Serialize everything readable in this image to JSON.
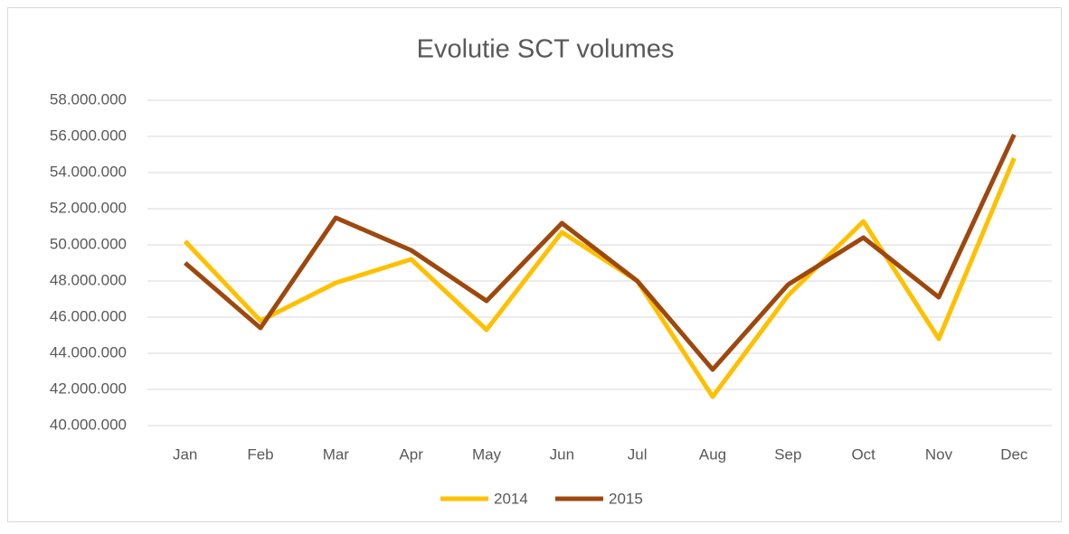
{
  "chart_data": {
    "type": "line",
    "title": "Evolutie SCT volumes",
    "categories": [
      "Jan",
      "Feb",
      "Mar",
      "Apr",
      "May",
      "Jun",
      "Jul",
      "Aug",
      "Sep",
      "Oct",
      "Nov",
      "Dec"
    ],
    "series": [
      {
        "name": "2014",
        "color": "#ffc000",
        "values": [
          50200000,
          45800000,
          47900000,
          49200000,
          45300000,
          50700000,
          48000000,
          41600000,
          47200000,
          51300000,
          44800000,
          54800000
        ]
      },
      {
        "name": "2015",
        "color": "#9e480e",
        "values": [
          49000000,
          45400000,
          51500000,
          49700000,
          46900000,
          51200000,
          48000000,
          43100000,
          47800000,
          50400000,
          47100000,
          56100000
        ]
      }
    ],
    "ylim": [
      40000000,
      58000000
    ],
    "yticks": [
      {
        "value": 40000000,
        "label": "40.000.000"
      },
      {
        "value": 42000000,
        "label": "42.000.000"
      },
      {
        "value": 44000000,
        "label": "44.000.000"
      },
      {
        "value": 46000000,
        "label": "46.000.000"
      },
      {
        "value": 48000000,
        "label": "48.000.000"
      },
      {
        "value": 50000000,
        "label": "50.000.000"
      },
      {
        "value": 52000000,
        "label": "52.000.000"
      },
      {
        "value": 54000000,
        "label": "54.000.000"
      },
      {
        "value": 56000000,
        "label": "56.000.000"
      },
      {
        "value": 58000000,
        "label": "58.000.000"
      }
    ],
    "grid": true,
    "legend": "bottom"
  }
}
